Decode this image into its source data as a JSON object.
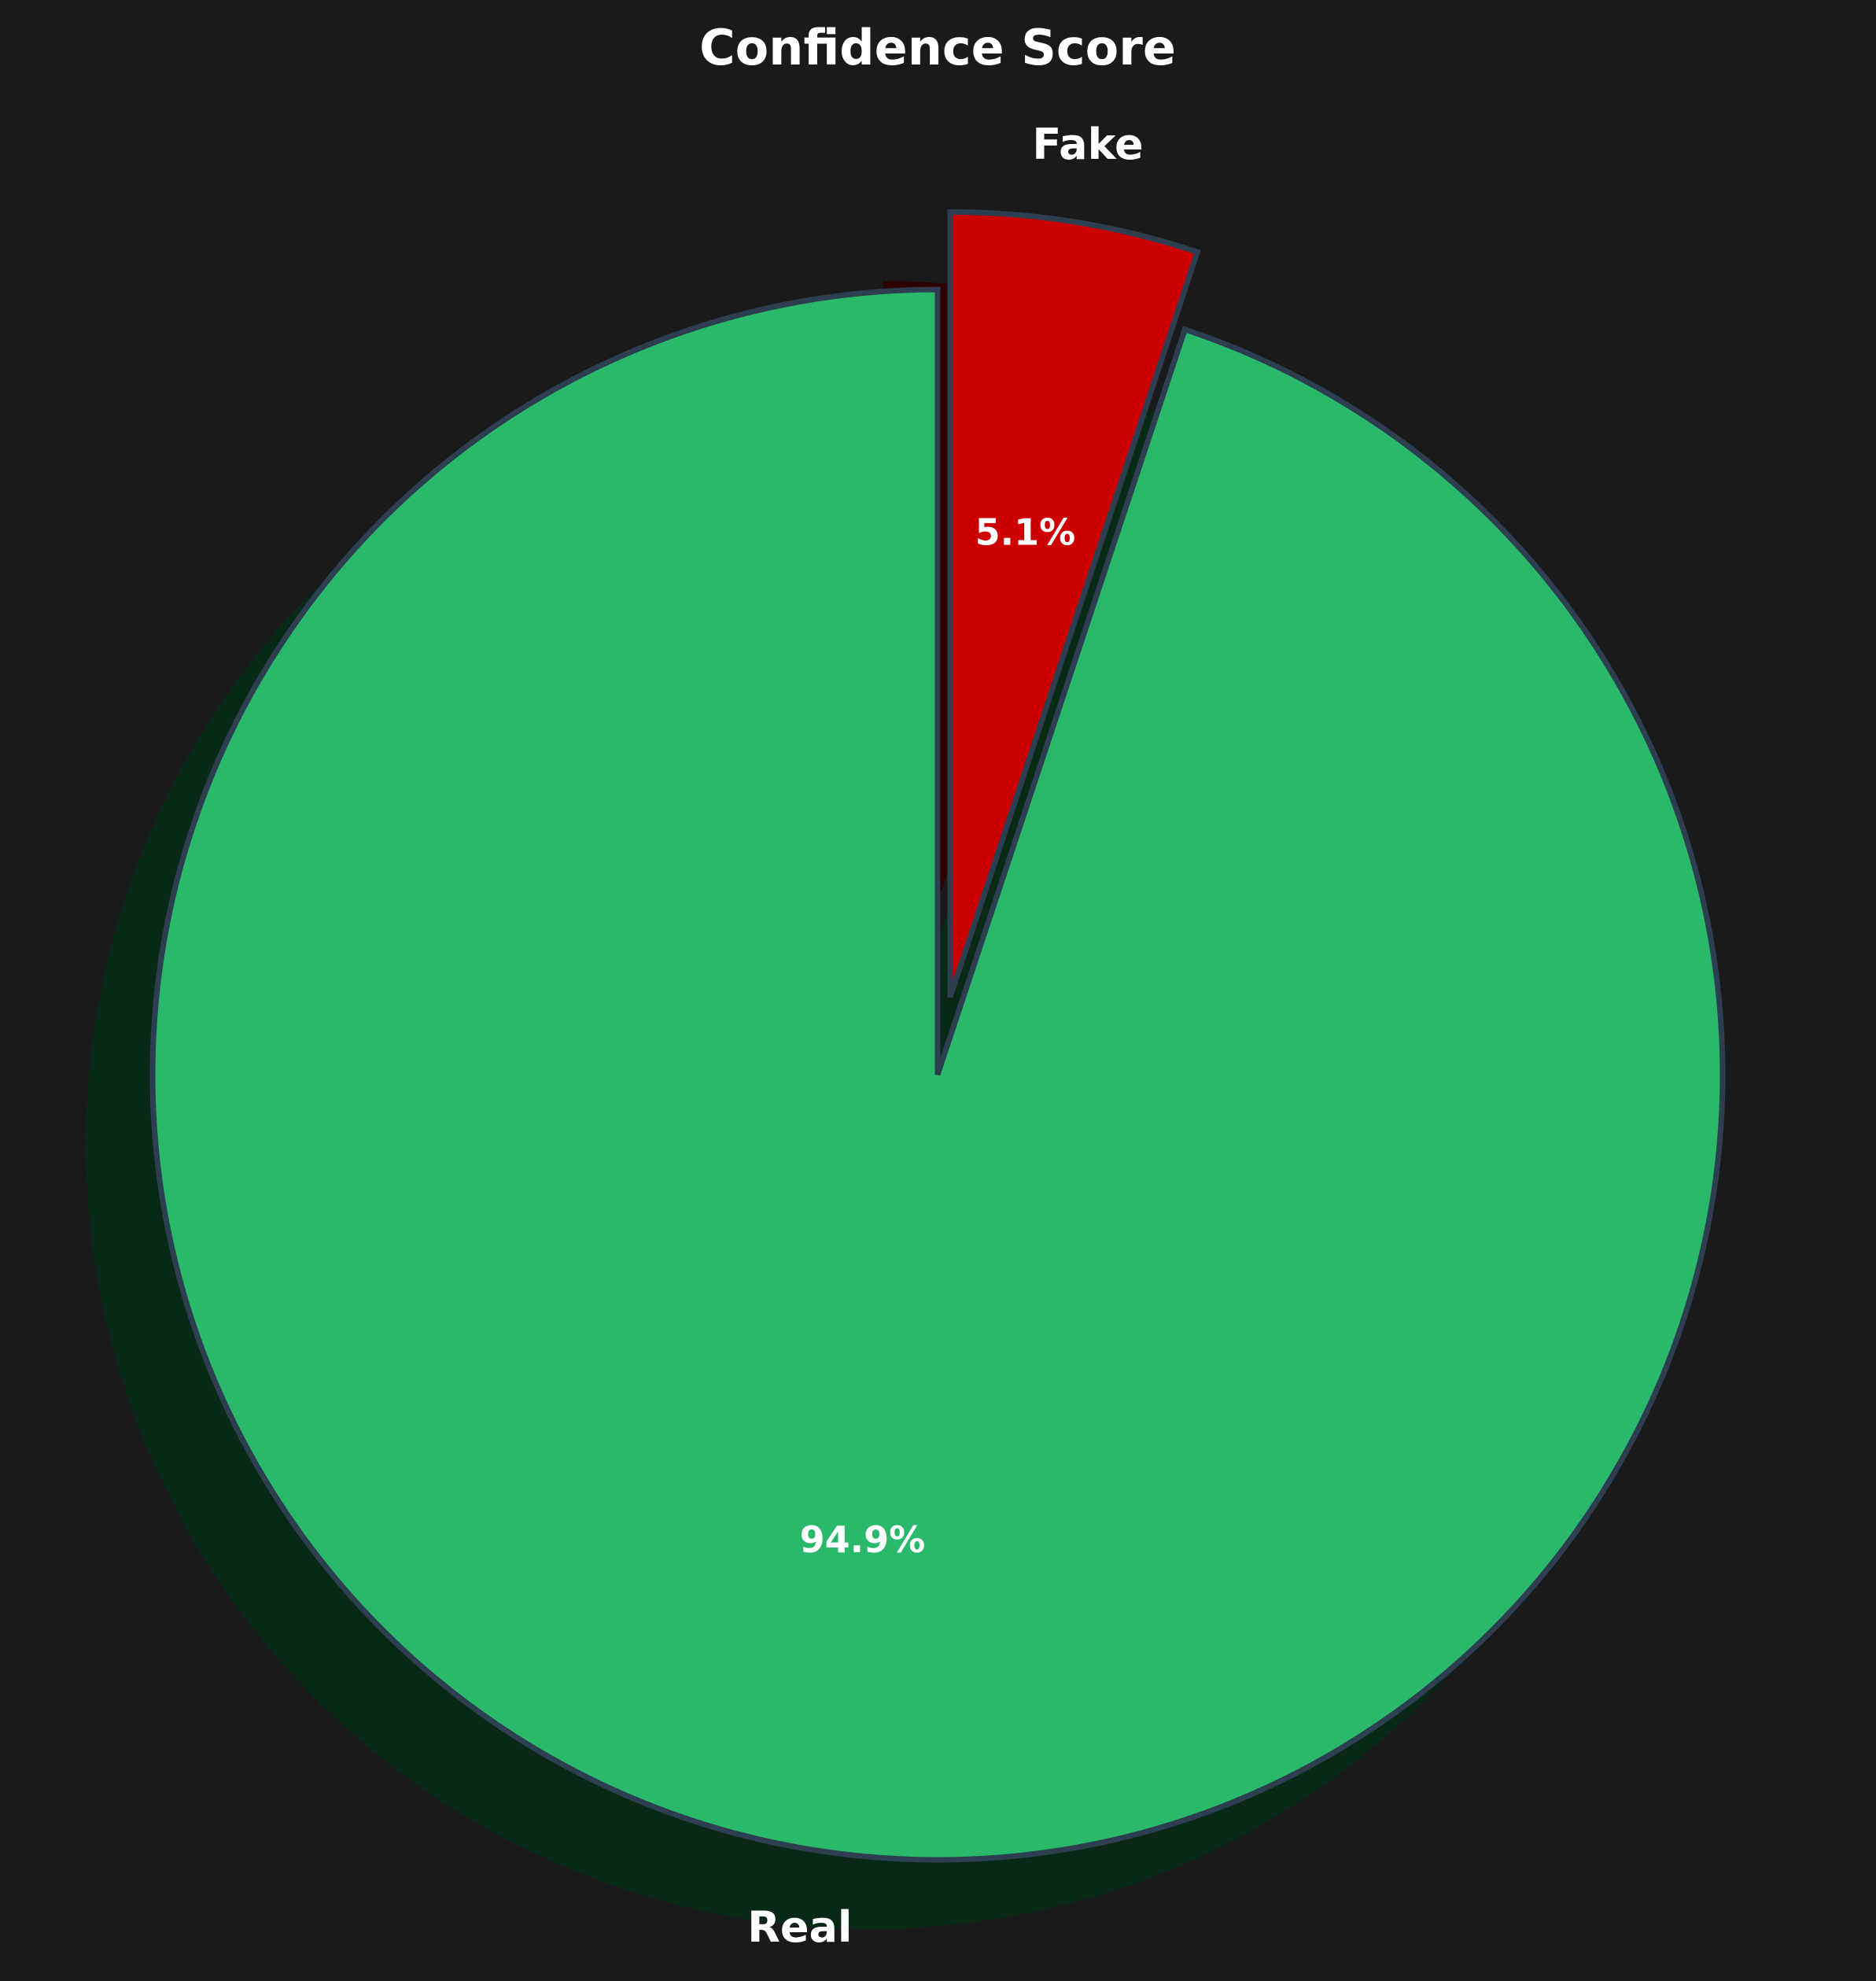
{
  "chart_data": {
    "type": "pie",
    "title": "Confidence Score",
    "start_angle_deg": 90,
    "direction": "clockwise",
    "shadow": true,
    "edge_color": "#2c3e50",
    "background": "#1a1a1a",
    "slices": [
      {
        "label": "Fake",
        "value": 5.1,
        "pct_label": "5.1%",
        "color": "#cc0000",
        "explode": true
      },
      {
        "label": "Real",
        "value": 94.9,
        "pct_label": "94.9%",
        "color": "#2ab96a",
        "explode": false
      }
    ]
  }
}
